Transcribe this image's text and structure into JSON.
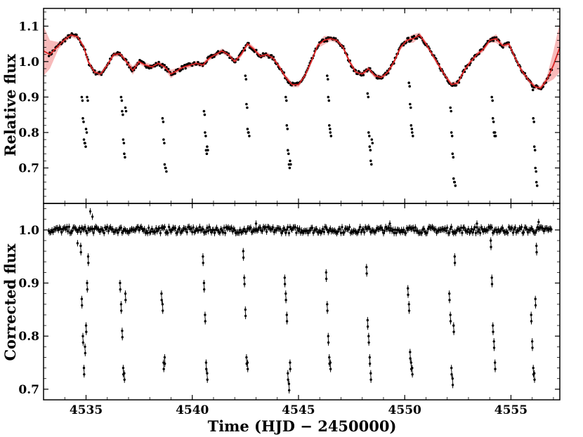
{
  "chart_data": [
    {
      "type": "scatter",
      "panel": "top",
      "xlabel": "",
      "ylabel": "Relative flux",
      "xlim": [
        4533.0,
        4557.3
      ],
      "ylim": [
        0.6,
        1.15
      ],
      "grid": false,
      "x_ticks": [
        4535,
        4540,
        4545,
        4550,
        4555
      ],
      "x_tick_labels_shown": false,
      "y_ticks": [
        0.7,
        0.8,
        0.9,
        1.0,
        1.1
      ],
      "y_tick_labels": [
        "0.7",
        "0.8",
        "0.9",
        "1.0",
        "1.1"
      ],
      "series_style": {
        "points": "#000000",
        "model_line": "#d62020",
        "model_band": "#f4a3a3"
      },
      "baseline_model": {
        "x": [
          4533.0,
          4533.3,
          4533.7,
          4534.0,
          4534.3,
          4534.6,
          4534.9,
          4535.1,
          4535.4,
          4535.7,
          4536.0,
          4536.3,
          4536.6,
          4536.9,
          4537.2,
          4537.5,
          4537.8,
          4538.1,
          4538.4,
          4538.7,
          4539.0,
          4539.3,
          4539.6,
          4539.9,
          4540.2,
          4540.5,
          4540.8,
          4541.1,
          4541.4,
          4541.7,
          4542.0,
          4542.3,
          4542.6,
          4542.9,
          4543.2,
          4543.5,
          4543.8,
          4544.1,
          4544.4,
          4544.7,
          4545.0,
          4545.3,
          4545.6,
          4545.9,
          4546.2,
          4546.5,
          4546.8,
          4547.1,
          4547.4,
          4547.7,
          4548.0,
          4548.3,
          4548.6,
          4548.9,
          4549.2,
          4549.5,
          4549.8,
          4550.1,
          4550.4,
          4550.7,
          4551.0,
          4551.3,
          4551.6,
          4551.9,
          4552.2,
          4552.5,
          4552.8,
          4553.1,
          4553.4,
          4553.7,
          4554.0,
          4554.3,
          4554.6,
          4554.9,
          4555.2,
          4555.5,
          4555.8,
          4556.1,
          4556.4,
          4556.7,
          4557.0,
          4557.3
        ],
        "y": [
          1.03,
          1.02,
          1.045,
          1.062,
          1.075,
          1.07,
          1.04,
          1.0,
          0.97,
          0.965,
          0.99,
          1.02,
          1.022,
          1.0,
          0.975,
          1.0,
          0.99,
          0.985,
          0.995,
          0.985,
          0.965,
          0.975,
          0.985,
          0.99,
          0.995,
          0.99,
          1.01,
          1.02,
          1.03,
          1.02,
          1.0,
          1.02,
          1.05,
          1.035,
          1.015,
          1.02,
          1.01,
          0.985,
          0.955,
          0.935,
          0.935,
          0.96,
          1.0,
          1.045,
          1.06,
          1.065,
          1.06,
          1.04,
          1.0,
          0.97,
          0.965,
          0.98,
          0.96,
          0.955,
          0.97,
          1.0,
          1.04,
          1.06,
          1.065,
          1.075,
          1.05,
          1.02,
          0.99,
          0.96,
          0.935,
          0.94,
          0.975,
          1.0,
          1.02,
          1.035,
          1.06,
          1.065,
          1.045,
          1.05,
          1.01,
          0.975,
          0.95,
          0.93,
          0.925,
          0.95,
          0.99,
          1.04
        ],
        "band_half_width": [
          0.07,
          0.04,
          0.01,
          0.008,
          0.007,
          0.007,
          0.007,
          0.007,
          0.007,
          0.007,
          0.007,
          0.007,
          0.007,
          0.007,
          0.012,
          0.007,
          0.007,
          0.007,
          0.007,
          0.007,
          0.012,
          0.007,
          0.007,
          0.007,
          0.007,
          0.007,
          0.007,
          0.007,
          0.007,
          0.007,
          0.007,
          0.007,
          0.007,
          0.007,
          0.007,
          0.007,
          0.007,
          0.007,
          0.007,
          0.007,
          0.007,
          0.007,
          0.007,
          0.007,
          0.012,
          0.007,
          0.007,
          0.007,
          0.007,
          0.007,
          0.007,
          0.007,
          0.007,
          0.007,
          0.007,
          0.007,
          0.007,
          0.007,
          0.012,
          0.007,
          0.007,
          0.007,
          0.007,
          0.007,
          0.007,
          0.007,
          0.007,
          0.007,
          0.007,
          0.007,
          0.007,
          0.012,
          0.007,
          0.007,
          0.007,
          0.007,
          0.007,
          0.007,
          0.007,
          0.01,
          0.04,
          0.07
        ]
      },
      "eclipse_points": {
        "x": [
          4534.8,
          4534.85,
          4534.9,
          4534.95,
          4535.0,
          4535.05,
          4536.65,
          4536.7,
          4536.75,
          4536.8,
          4536.85,
          4538.6,
          4538.65,
          4538.7,
          4538.75,
          4540.55,
          4540.6,
          4540.65,
          4540.7,
          4542.5,
          4542.55,
          4542.6,
          4542.65,
          4544.4,
          4544.45,
          4544.5,
          4544.55,
          4544.6,
          4546.35,
          4546.4,
          4546.45,
          4546.5,
          4548.25,
          4548.3,
          4548.35,
          4548.4,
          4548.45,
          4550.2,
          4550.25,
          4550.3,
          4550.35,
          4552.15,
          4552.2,
          4552.25,
          4552.3,
          4552.35,
          4554.1,
          4554.15,
          4554.2,
          4554.25,
          4556.0,
          4556.05,
          4556.1,
          4556.15,
          4556.2
        ],
        "y": [
          0.9,
          0.84,
          0.78,
          0.77,
          0.81,
          0.9,
          0.9,
          0.86,
          0.78,
          0.74,
          0.87,
          0.84,
          0.78,
          0.71,
          0.7,
          0.86,
          0.8,
          0.75,
          0.76,
          0.96,
          0.88,
          0.81,
          0.8,
          0.9,
          0.82,
          0.75,
          0.71,
          0.72,
          0.96,
          0.9,
          0.82,
          0.8,
          0.91,
          0.8,
          0.76,
          0.72,
          0.78,
          0.94,
          0.88,
          0.82,
          0.8,
          0.87,
          0.8,
          0.74,
          0.67,
          0.66,
          0.9,
          0.84,
          0.8,
          0.8,
          0.93,
          0.84,
          0.76,
          0.7,
          0.66
        ]
      }
    },
    {
      "type": "scatter",
      "panel": "bottom",
      "xlabel": "Time (HJD − 2450000)",
      "ylabel": "Corrected flux",
      "xlim": [
        4533.0,
        4557.3
      ],
      "ylim": [
        0.68,
        1.05
      ],
      "grid": false,
      "x_ticks": [
        4535,
        4540,
        4545,
        4550,
        4555
      ],
      "x_tick_labels": [
        "4535",
        "4540",
        "4545",
        "4550",
        "4555"
      ],
      "y_ticks": [
        0.7,
        0.8,
        0.9,
        1.0
      ],
      "y_tick_labels": [
        "0.7",
        "0.8",
        "0.9",
        "1.0"
      ],
      "baseline_value": 1.0,
      "baseline_scatter": 0.006,
      "error_bar_half": 0.006,
      "out_of_eclipse_outliers": {
        "x": [
          4535.2,
          4535.3,
          4534.6,
          4543.0,
          4549.3,
          4553.4,
          4556.3
        ],
        "y": [
          1.035,
          1.025,
          0.975,
          1.012,
          1.012,
          1.012,
          1.015
        ]
      },
      "eclipse_points": {
        "x": [
          4534.75,
          4534.8,
          4534.85,
          4534.9,
          4534.95,
          4535.0,
          4535.05,
          4535.1,
          4536.6,
          4536.65,
          4536.7,
          4536.75,
          4536.8,
          4536.85,
          4538.55,
          4538.6,
          4538.65,
          4538.7,
          4540.5,
          4540.55,
          4540.6,
          4540.65,
          4540.7,
          4542.4,
          4542.45,
          4542.5,
          4542.55,
          4542.6,
          4544.35,
          4544.4,
          4544.45,
          4544.5,
          4544.55,
          4544.6,
          4546.3,
          4546.35,
          4546.4,
          4546.45,
          4546.5,
          4548.2,
          4548.25,
          4548.3,
          4548.35,
          4548.4,
          4550.15,
          4550.2,
          4550.25,
          4550.3,
          4550.35,
          4552.1,
          4552.15,
          4552.2,
          4552.25,
          4552.3,
          4552.35,
          4554.05,
          4554.1,
          4554.15,
          4554.2,
          4554.25,
          4555.95,
          4556.0,
          4556.05,
          4556.1,
          4556.15,
          4556.2
        ],
        "y": [
          0.97,
          0.87,
          0.8,
          0.74,
          0.78,
          0.82,
          0.9,
          0.95,
          0.9,
          0.86,
          0.81,
          0.74,
          0.73,
          0.88,
          0.88,
          0.86,
          0.75,
          0.76,
          0.95,
          0.9,
          0.84,
          0.75,
          0.73,
          0.96,
          0.91,
          0.85,
          0.76,
          0.75,
          0.91,
          0.88,
          0.84,
          0.73,
          0.71,
          0.75,
          0.92,
          0.86,
          0.8,
          0.76,
          0.75,
          0.93,
          0.83,
          0.8,
          0.76,
          0.73,
          0.89,
          0.86,
          0.77,
          0.75,
          0.74,
          0.88,
          0.84,
          0.74,
          0.72,
          0.82,
          0.95,
          0.98,
          0.91,
          0.82,
          0.79,
          0.75,
          0.84,
          0.79,
          0.74,
          0.73,
          0.87,
          0.97
        ]
      }
    }
  ]
}
